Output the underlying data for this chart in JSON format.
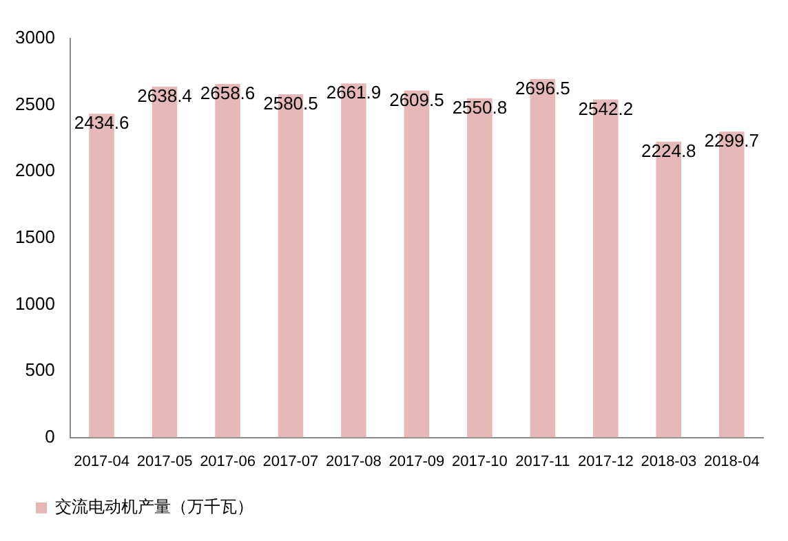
{
  "chart_data": {
    "type": "bar",
    "categories": [
      "2017-04",
      "2017-05",
      "2017-06",
      "2017-07",
      "2017-08",
      "2017-09",
      "2017-10",
      "2017-11",
      "2017-12",
      "2018-03",
      "2018-04"
    ],
    "series": [
      {
        "name": "交流电动机产量（万千瓦）",
        "color": "#e6b9b8",
        "values": [
          2434.6,
          2638.4,
          2658.6,
          2580.5,
          2661.9,
          2609.5,
          2550.8,
          2696.5,
          2542.2,
          2224.8,
          2299.7
        ]
      }
    ],
    "ylim": [
      0,
      3000
    ],
    "yticks": [
      0,
      500,
      1000,
      1500,
      2000,
      2500,
      3000
    ],
    "grid": false,
    "legend": "bottom left",
    "data_labels": true
  }
}
